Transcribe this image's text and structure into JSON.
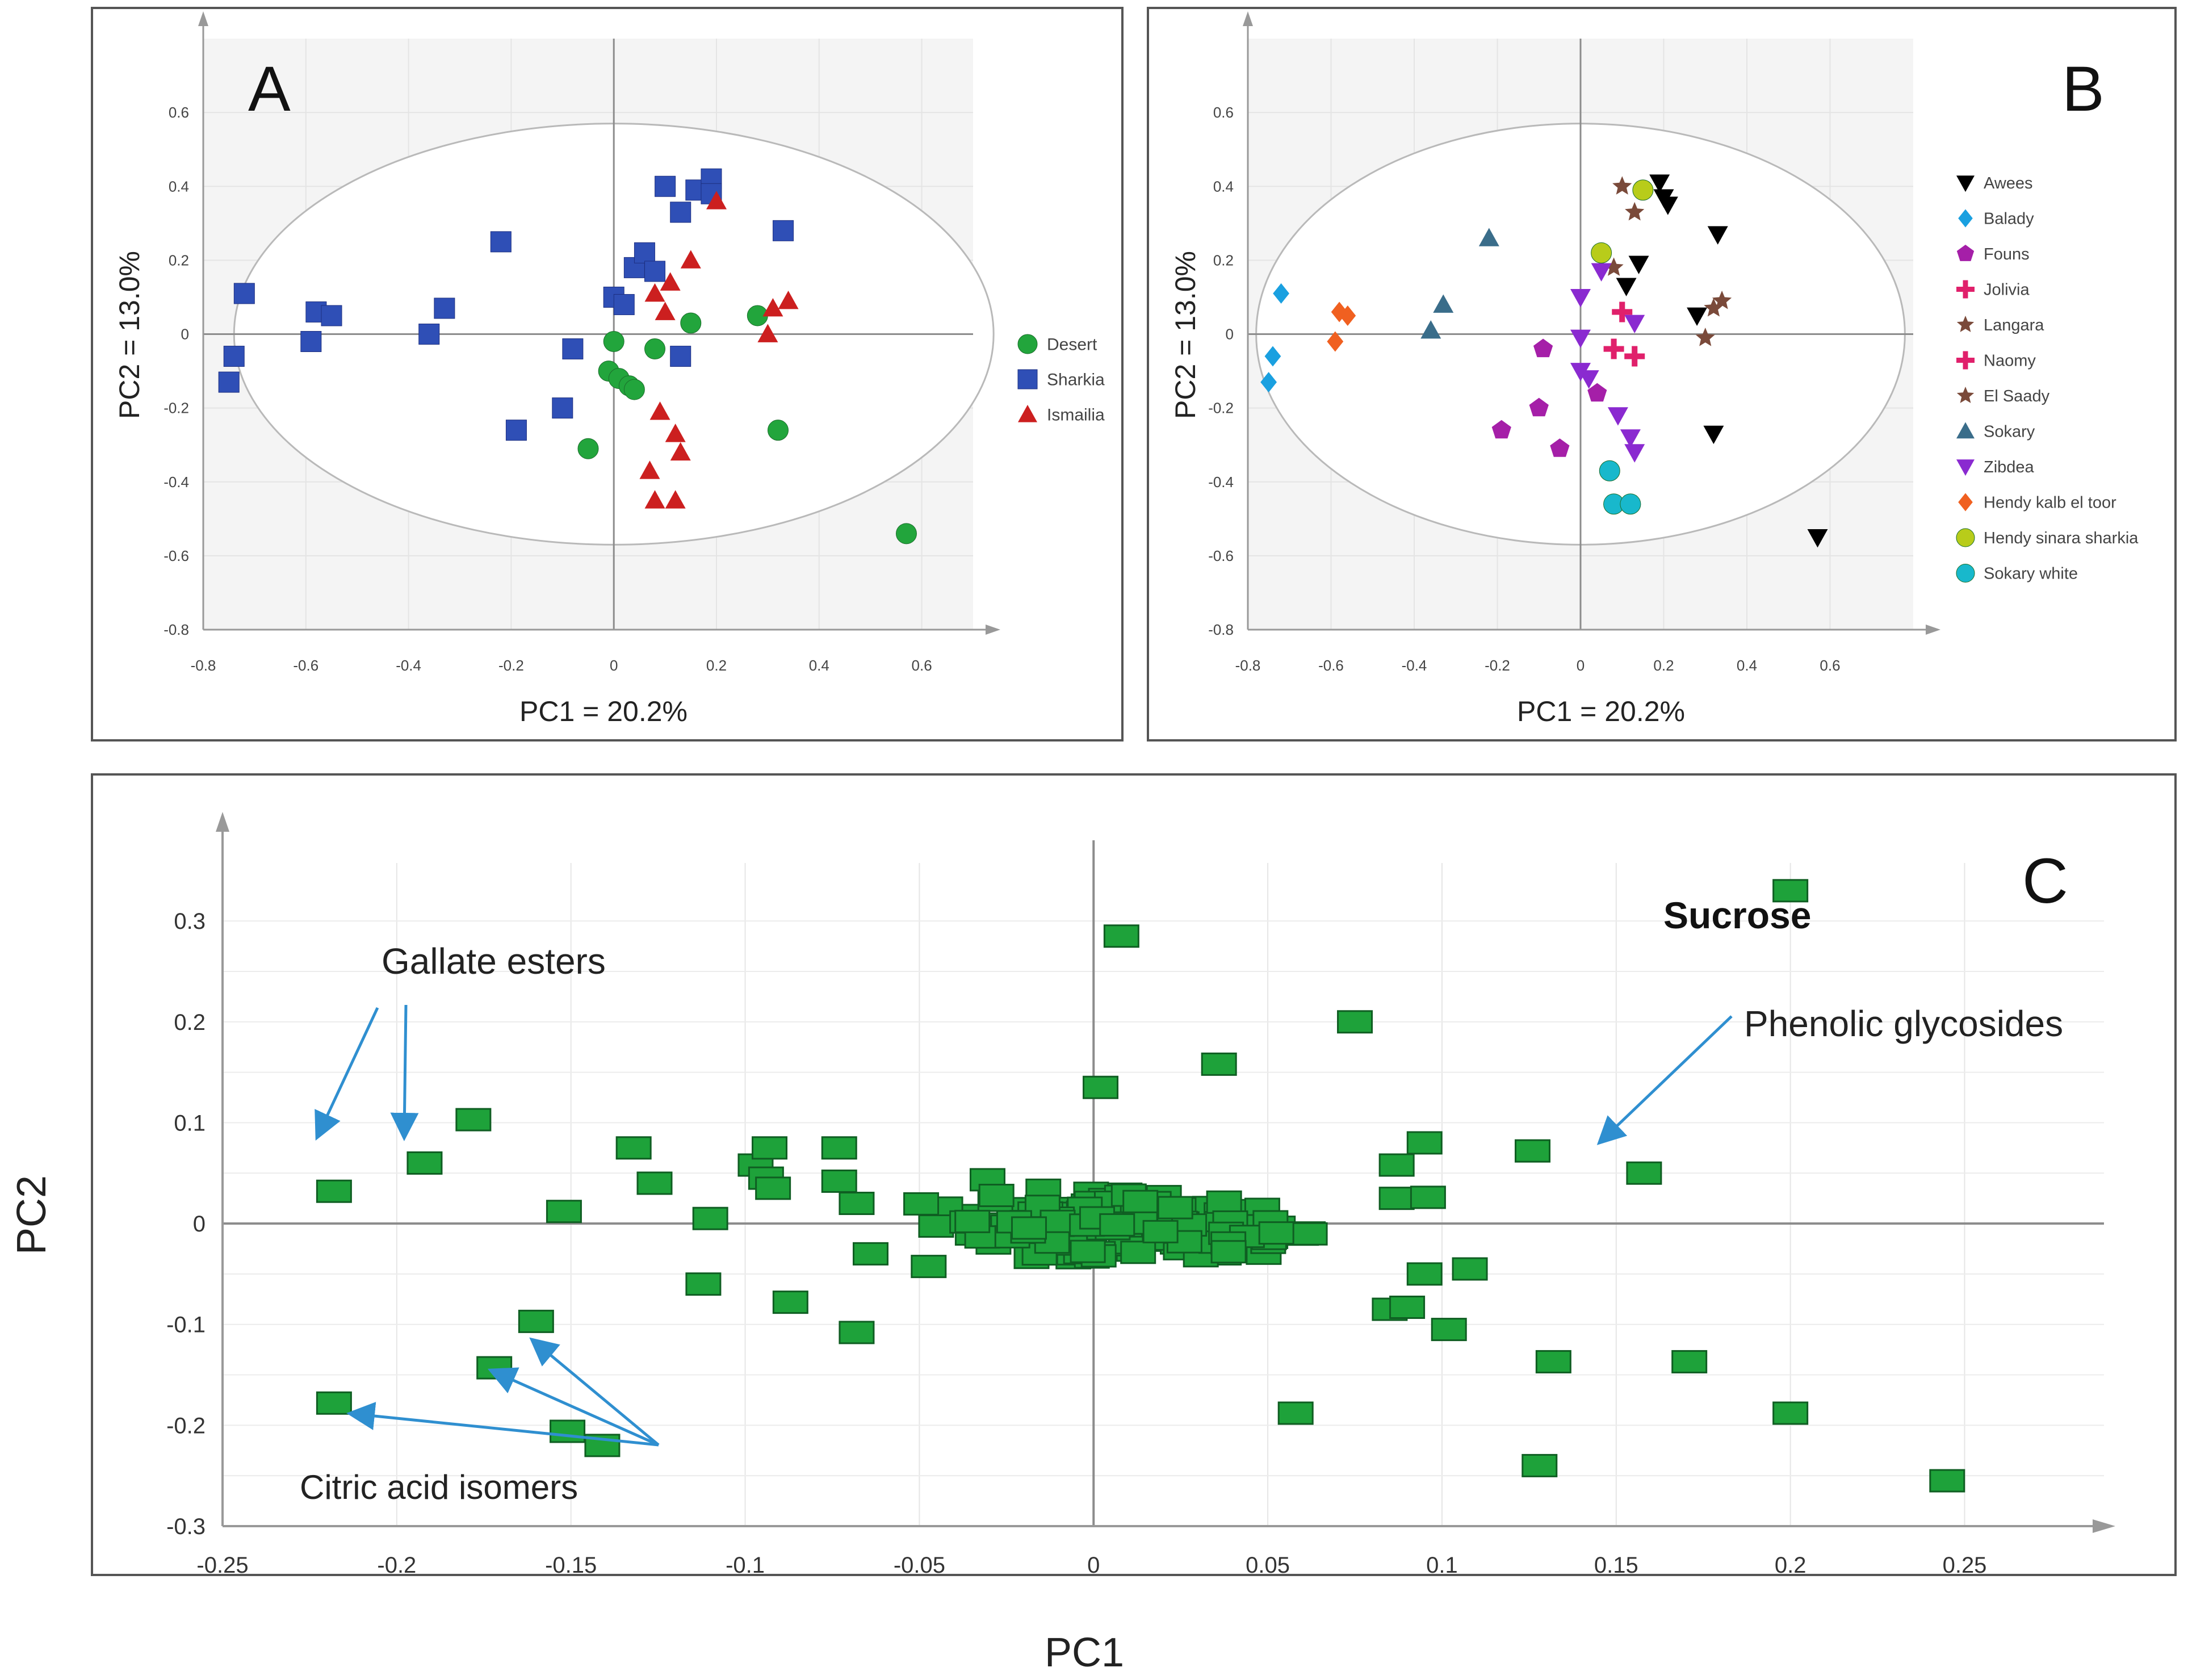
{
  "colors": {
    "desert": "#22a53c",
    "sharkia": "#2f4fb6",
    "ismailia": "#cc1f1f",
    "loading": "#1ea23a",
    "arrow": "#2f8fd0",
    "axis": "#888888",
    "grid": "#dedede",
    "ellipse": "#b9b9b9"
  },
  "chart_data": [
    {
      "type": "scatter",
      "panel_label": "A",
      "xlabel": "PC1 = 20.2%",
      "ylabel": "PC2 = 13.0%",
      "xlim": [
        -0.8,
        0.7
      ],
      "ylim": [
        -0.8,
        0.8
      ],
      "xticks": [
        "-0.8",
        "-0.6",
        "-0.4",
        "-0.2",
        "0",
        "0.2",
        "0.4",
        "0.6"
      ],
      "yticks": [
        "0.6",
        "0.4",
        "0.2",
        "0",
        "-0.2",
        "-0.4",
        "-0.6",
        "-0.8"
      ],
      "ellipse": {
        "rx": 0.74,
        "ry": 0.57
      },
      "legend_position": "right",
      "series": [
        {
          "name": "Desert",
          "marker": "circle",
          "color": "#22a53c",
          "points": [
            [
              0.0,
              -0.02
            ],
            [
              0.08,
              -0.04
            ],
            [
              0.15,
              0.03
            ],
            [
              0.28,
              0.05
            ],
            [
              -0.01,
              -0.1
            ],
            [
              0.01,
              -0.12
            ],
            [
              0.03,
              -0.14
            ],
            [
              0.04,
              -0.15
            ],
            [
              0.32,
              -0.26
            ],
            [
              -0.05,
              -0.31
            ],
            [
              0.57,
              -0.54
            ]
          ]
        },
        {
          "name": "Sharkia",
          "marker": "square",
          "color": "#2f4fb6",
          "points": [
            [
              -0.75,
              -0.13
            ],
            [
              -0.74,
              -0.06
            ],
            [
              -0.72,
              0.11
            ],
            [
              -0.59,
              -0.02
            ],
            [
              -0.58,
              0.06
            ],
            [
              -0.55,
              0.05
            ],
            [
              -0.36,
              0.0
            ],
            [
              -0.33,
              0.07
            ],
            [
              -0.22,
              0.25
            ],
            [
              -0.19,
              -0.26
            ],
            [
              -0.1,
              -0.2
            ],
            [
              -0.08,
              -0.04
            ],
            [
              0.0,
              0.1
            ],
            [
              0.02,
              0.08
            ],
            [
              0.04,
              0.18
            ],
            [
              0.06,
              0.22
            ],
            [
              0.08,
              0.17
            ],
            [
              0.1,
              0.4
            ],
            [
              0.13,
              0.33
            ],
            [
              0.16,
              0.39
            ],
            [
              0.19,
              0.42
            ],
            [
              0.19,
              0.38
            ],
            [
              0.33,
              0.28
            ],
            [
              0.13,
              -0.06
            ]
          ]
        },
        {
          "name": "Ismailia",
          "marker": "triangle",
          "color": "#cc1f1f",
          "points": [
            [
              0.2,
              0.36
            ],
            [
              0.15,
              0.2
            ],
            [
              0.11,
              0.14
            ],
            [
              0.08,
              0.11
            ],
            [
              0.1,
              0.06
            ],
            [
              0.31,
              0.07
            ],
            [
              0.34,
              0.09
            ],
            [
              0.3,
              0.0
            ],
            [
              0.09,
              -0.21
            ],
            [
              0.12,
              -0.27
            ],
            [
              0.13,
              -0.32
            ],
            [
              0.07,
              -0.37
            ],
            [
              0.08,
              -0.45
            ],
            [
              0.12,
              -0.45
            ]
          ]
        }
      ]
    },
    {
      "type": "scatter",
      "panel_label": "B",
      "xlabel": "PC1 = 20.2%",
      "ylabel": "PC2 = 13.0%",
      "xlim": [
        -0.8,
        0.8
      ],
      "ylim": [
        -0.8,
        0.8
      ],
      "xticks": [
        "-0.8",
        "-0.6",
        "-0.4",
        "-0.2",
        "0",
        "0.2",
        "0.4",
        "0.6"
      ],
      "yticks": [
        "0.6",
        "0.4",
        "0.2",
        "0",
        "-0.2",
        "-0.4",
        "-0.6",
        "-0.8"
      ],
      "ellipse": {
        "rx": 0.78,
        "ry": 0.57
      },
      "legend_position": "right",
      "series": [
        {
          "name": "Awees",
          "marker": "tri-down",
          "color": "#000000",
          "points": [
            [
              0.19,
              0.41
            ],
            [
              0.2,
              0.37
            ],
            [
              0.21,
              0.35
            ],
            [
              0.33,
              0.27
            ],
            [
              0.11,
              0.13
            ],
            [
              0.14,
              0.19
            ],
            [
              0.28,
              0.05
            ],
            [
              0.32,
              -0.27
            ],
            [
              0.57,
              -0.55
            ]
          ]
        },
        {
          "name": "Balady",
          "marker": "diamond",
          "color": "#1aa0e0",
          "points": [
            [
              -0.72,
              0.11
            ],
            [
              -0.74,
              -0.06
            ],
            [
              -0.75,
              -0.13
            ]
          ]
        },
        {
          "name": "Founs",
          "marker": "pentagon",
          "color": "#a51fa8",
          "points": [
            [
              -0.09,
              -0.04
            ],
            [
              -0.1,
              -0.2
            ],
            [
              -0.19,
              -0.26
            ],
            [
              -0.05,
              -0.31
            ],
            [
              0.04,
              -0.16
            ]
          ]
        },
        {
          "name": "Jolivia",
          "marker": "plus",
          "color": "#e0206b",
          "points": [
            [
              0.08,
              -0.04
            ],
            [
              0.13,
              -0.06
            ],
            [
              0.1,
              0.06
            ]
          ]
        },
        {
          "name": "Langara",
          "marker": "star",
          "color": "#7a4a3a",
          "points": [
            [
              0.1,
              0.4
            ],
            [
              0.13,
              0.33
            ],
            [
              0.08,
              0.18
            ],
            [
              0.34,
              0.09
            ],
            [
              0.3,
              -0.01
            ]
          ]
        },
        {
          "name": "Naomy",
          "marker": "plus",
          "color": "#e0206b",
          "points": []
        },
        {
          "name": "El Saady",
          "marker": "star",
          "color": "#7a4a3a",
          "points": [
            [
              0.32,
              0.07
            ]
          ]
        },
        {
          "name": "Sokary",
          "marker": "triangle",
          "color": "#3a6d8a",
          "points": [
            [
              -0.22,
              0.26
            ],
            [
              -0.33,
              0.08
            ],
            [
              -0.36,
              0.01
            ]
          ]
        },
        {
          "name": "Zibdea",
          "marker": "tri-down",
          "color": "#8a2ad0",
          "points": [
            [
              0.0,
              0.1
            ],
            [
              0.0,
              -0.01
            ],
            [
              0.02,
              -0.12
            ],
            [
              0.05,
              0.17
            ],
            [
              0.13,
              0.03
            ],
            [
              0.09,
              -0.22
            ],
            [
              0.12,
              -0.28
            ],
            [
              0.13,
              -0.32
            ],
            [
              0.0,
              -0.1
            ]
          ]
        },
        {
          "name": "Hendy kalb el toor",
          "marker": "diamond",
          "color": "#f06020",
          "points": [
            [
              -0.58,
              0.06
            ],
            [
              -0.56,
              0.05
            ],
            [
              -0.59,
              -0.02
            ]
          ]
        },
        {
          "name": "Hendy sinara sharkia",
          "marker": "circle",
          "color": "#b8cc1a",
          "points": [
            [
              0.15,
              0.39
            ],
            [
              0.05,
              0.22
            ]
          ]
        },
        {
          "name": "Sokary white",
          "marker": "circle",
          "color": "#18b8cc",
          "points": [
            [
              0.07,
              -0.37
            ],
            [
              0.08,
              -0.46
            ],
            [
              0.12,
              -0.46
            ]
          ]
        }
      ]
    },
    {
      "type": "scatter",
      "panel_label": "C",
      "xlabel": "PC1",
      "ylabel": "PC2",
      "xlim": [
        -0.25,
        0.29
      ],
      "ylim": [
        -0.3,
        0.38
      ],
      "xticks": [
        "-0.25",
        "-0.2",
        "-0.15",
        "-0.1",
        "-0.05",
        "0",
        "0.05",
        "0.1",
        "0.15",
        "0.2",
        "0.25"
      ],
      "yticks": [
        "0.3",
        "0.2",
        "0.1",
        "0",
        "-0.1",
        "-0.2",
        "-0.3"
      ],
      "annotations": [
        {
          "text": "Sucrose",
          "bold": true
        },
        {
          "text": "Gallate esters"
        },
        {
          "text": "Phenolic glycosides"
        },
        {
          "text": "Citric acid isomers"
        }
      ],
      "outliers": [
        [
          0.2,
          0.33
        ],
        [
          0.008,
          0.285
        ],
        [
          0.075,
          0.2
        ],
        [
          0.036,
          0.158
        ],
        [
          0.002,
          0.135
        ],
        [
          -0.178,
          0.103
        ],
        [
          -0.192,
          0.06
        ],
        [
          -0.218,
          0.032
        ],
        [
          -0.152,
          0.012
        ],
        [
          -0.132,
          0.075
        ],
        [
          -0.126,
          0.04
        ],
        [
          -0.11,
          0.005
        ],
        [
          -0.112,
          -0.06
        ],
        [
          -0.097,
          0.058
        ],
        [
          -0.094,
          0.045
        ],
        [
          -0.092,
          0.035
        ],
        [
          -0.093,
          0.075
        ],
        [
          -0.073,
          0.075
        ],
        [
          -0.073,
          0.042
        ],
        [
          -0.068,
          0.02
        ],
        [
          -0.064,
          -0.03
        ],
        [
          -0.068,
          -0.108
        ],
        [
          -0.087,
          -0.078
        ],
        [
          -0.16,
          -0.097
        ],
        [
          -0.172,
          -0.143
        ],
        [
          -0.218,
          -0.178
        ],
        [
          -0.151,
          -0.206
        ],
        [
          -0.141,
          -0.22
        ],
        [
          0.058,
          -0.188
        ],
        [
          0.095,
          0.08
        ],
        [
          0.087,
          0.058
        ],
        [
          0.087,
          0.025
        ],
        [
          0.096,
          0.026
        ],
        [
          0.126,
          0.072
        ],
        [
          0.158,
          0.05
        ],
        [
          0.108,
          -0.045
        ],
        [
          0.095,
          -0.05
        ],
        [
          0.085,
          -0.085
        ],
        [
          0.09,
          -0.083
        ],
        [
          0.102,
          -0.105
        ],
        [
          0.132,
          -0.137
        ],
        [
          0.171,
          -0.137
        ],
        [
          0.2,
          -0.188
        ],
        [
          0.128,
          -0.24
        ],
        [
          0.245,
          -0.255
        ]
      ]
    }
  ]
}
